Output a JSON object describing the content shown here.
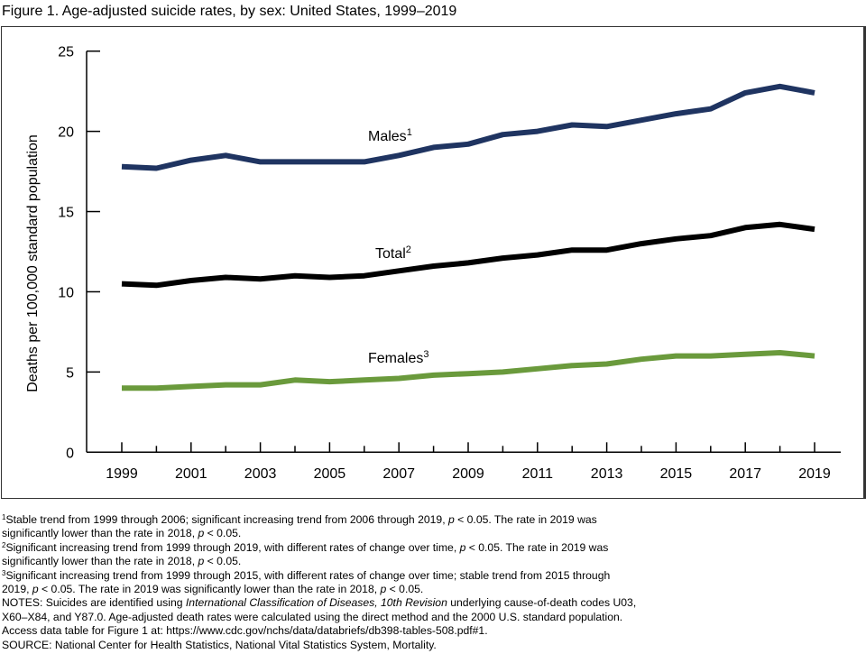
{
  "figure": {
    "title": "Figure 1. Age-adjusted suicide rates, by sex: United States, 1999–2019"
  },
  "chart_data": {
    "type": "line",
    "title": "Figure 1. Age-adjusted suicide rates, by sex: United States, 1999–2019",
    "xlabel": "",
    "ylabel": "Deaths per 100,000 standard population",
    "ylim": [
      0,
      25
    ],
    "yticks": [
      0,
      5,
      10,
      15,
      20,
      25
    ],
    "xlim": [
      1999,
      2019
    ],
    "xticks_labeled": [
      1999,
      2001,
      2003,
      2005,
      2007,
      2009,
      2011,
      2013,
      2015,
      2017,
      2019
    ],
    "x": [
      1999,
      2000,
      2001,
      2002,
      2003,
      2004,
      2005,
      2006,
      2007,
      2008,
      2009,
      2010,
      2011,
      2012,
      2013,
      2014,
      2015,
      2016,
      2017,
      2018,
      2019
    ],
    "grid": false,
    "legend": "inline labels",
    "series": [
      {
        "name": "Males",
        "footnote": "1",
        "color": "#1f3461",
        "values": [
          17.8,
          17.7,
          18.2,
          18.5,
          18.1,
          18.1,
          18.1,
          18.1,
          18.5,
          19.0,
          19.2,
          19.8,
          20.0,
          20.4,
          20.3,
          20.7,
          21.1,
          21.4,
          22.4,
          22.8,
          22.4
        ]
      },
      {
        "name": "Total",
        "footnote": "2",
        "color": "#000000",
        "values": [
          10.5,
          10.4,
          10.7,
          10.9,
          10.8,
          11.0,
          10.9,
          11.0,
          11.3,
          11.6,
          11.8,
          12.1,
          12.3,
          12.6,
          12.6,
          13.0,
          13.3,
          13.5,
          14.0,
          14.2,
          13.9
        ]
      },
      {
        "name": "Females",
        "footnote": "3",
        "color": "#6a9a3c",
        "values": [
          4.0,
          4.0,
          4.1,
          4.2,
          4.2,
          4.5,
          4.4,
          4.5,
          4.6,
          4.8,
          4.9,
          5.0,
          5.2,
          5.4,
          5.5,
          5.8,
          6.0,
          6.0,
          6.1,
          6.2,
          6.0
        ]
      }
    ]
  },
  "notes": {
    "fn1_mark": "1",
    "fn1_a": "Stable trend from 1999 through 2006; significant increasing trend from 2006 through 2019, ",
    "fn1_p": "p",
    "fn1_b": " < 0.05. The rate in 2019 was",
    "fn1_line2_a": "significantly lower than the rate in 2018, ",
    "fn1_line2_p": "p",
    "fn1_line2_b": " < 0.05.",
    "fn2_mark": "2",
    "fn2_a": "Significant increasing trend from 1999 through 2019, with different rates of change over time, ",
    "fn2_p": "p",
    "fn2_b": " < 0.05. The rate in 2019 was",
    "fn2_line2_a": "significantly lower than the rate in 2018, ",
    "fn2_line2_p": "p",
    "fn2_line2_b": " < 0.05.",
    "fn3_mark": "3",
    "fn3_a": "Significant increasing trend from 1999 through 2015, with different rates of change over time; stable trend from 2015 through",
    "fn3_line2_a": "2019, ",
    "fn3_line2_p": "p",
    "fn3_line2_b": " < 0.05. The rate in 2019 was significantly lower than the rate in 2018, ",
    "fn3_line2_p2": "p",
    "fn3_line2_c": " < 0.05.",
    "notes_a": "NOTES: Suicides are identified using ",
    "notes_icd": "International Classification of Diseases, 10th Revision",
    "notes_b": " underlying cause-of-death codes U03,",
    "notes_line2": "X60–X84, and Y87.0. Age-adjusted death rates were calculated using the direct method and the 2000 U.S. standard population.",
    "access": "Access data table for Figure 1 at: https://www.cdc.gov/nchs/data/databriefs/db398-tables-508.pdf#1.",
    "source": "SOURCE: National Center for Health Statistics, National Vital Statistics System, Mortality."
  }
}
